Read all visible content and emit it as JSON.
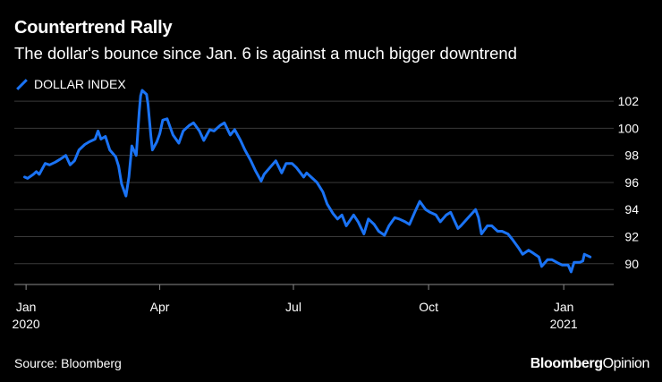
{
  "header": {
    "title": "Countertrend Rally",
    "subtitle": "The dollar's bounce since Jan. 6 is against a much bigger downtrend"
  },
  "footer": {
    "source": "Source: Bloomberg",
    "brand_bold": "Bloomberg",
    "brand_light": "Opinion"
  },
  "colors": {
    "series": "#1a73f5",
    "grid": "#3a3a3a",
    "background": "#000000"
  },
  "chart_data": {
    "type": "line",
    "title": "Countertrend Rally",
    "subtitle": "The dollar's bounce since Jan. 6 is against a much bigger downtrend",
    "xlabel": "",
    "ylabel": "",
    "ylim": [
      88.6,
      102.6
    ],
    "xlim": [
      "2019-12-24",
      "2021-02-04"
    ],
    "yticks": [
      "90",
      "92",
      "94",
      "96",
      "98",
      "100",
      "102"
    ],
    "xticks": [
      {
        "date": "2020-01-01",
        "label1": "Jan",
        "label2": "2020"
      },
      {
        "date": "2020-04-01",
        "label1": "Apr",
        "label2": ""
      },
      {
        "date": "2020-07-01",
        "label1": "Jul",
        "label2": ""
      },
      {
        "date": "2020-10-01",
        "label1": "Oct",
        "label2": ""
      },
      {
        "date": "2021-01-01",
        "label1": "Jan",
        "label2": "2021"
      }
    ],
    "grid": true,
    "legend": "top-left",
    "series": [
      {
        "name": "DOLLAR INDEX",
        "points": [
          [
            "2019-12-31",
            96.4
          ],
          [
            "2020-01-02",
            96.3
          ],
          [
            "2020-01-06",
            96.6
          ],
          [
            "2020-01-08",
            96.8
          ],
          [
            "2020-01-10",
            96.6
          ],
          [
            "2020-01-14",
            97.4
          ],
          [
            "2020-01-17",
            97.3
          ],
          [
            "2020-01-21",
            97.5
          ],
          [
            "2020-01-24",
            97.7
          ],
          [
            "2020-01-28",
            98.0
          ],
          [
            "2020-01-31",
            97.3
          ],
          [
            "2020-02-03",
            97.6
          ],
          [
            "2020-02-06",
            98.4
          ],
          [
            "2020-02-10",
            98.8
          ],
          [
            "2020-02-13",
            99.0
          ],
          [
            "2020-02-17",
            99.2
          ],
          [
            "2020-02-19",
            99.8
          ],
          [
            "2020-02-21",
            99.2
          ],
          [
            "2020-02-24",
            99.4
          ],
          [
            "2020-02-27",
            98.4
          ],
          [
            "2020-03-02",
            97.9
          ],
          [
            "2020-03-04",
            97.2
          ],
          [
            "2020-03-06",
            95.9
          ],
          [
            "2020-03-09",
            95.0
          ],
          [
            "2020-03-11",
            96.4
          ],
          [
            "2020-03-13",
            98.7
          ],
          [
            "2020-03-16",
            98.0
          ],
          [
            "2020-03-18",
            101.2
          ],
          [
            "2020-03-19",
            102.4
          ],
          [
            "2020-03-20",
            102.8
          ],
          [
            "2020-03-23",
            102.5
          ],
          [
            "2020-03-24",
            101.8
          ],
          [
            "2020-03-26",
            99.4
          ],
          [
            "2020-03-27",
            98.4
          ],
          [
            "2020-03-30",
            99.0
          ],
          [
            "2020-04-01",
            99.6
          ],
          [
            "2020-04-03",
            100.6
          ],
          [
            "2020-04-06",
            100.7
          ],
          [
            "2020-04-08",
            100.1
          ],
          [
            "2020-04-10",
            99.5
          ],
          [
            "2020-04-14",
            98.9
          ],
          [
            "2020-04-17",
            99.8
          ],
          [
            "2020-04-21",
            100.2
          ],
          [
            "2020-04-24",
            100.4
          ],
          [
            "2020-04-28",
            99.8
          ],
          [
            "2020-05-01",
            99.1
          ],
          [
            "2020-05-05",
            99.9
          ],
          [
            "2020-05-08",
            99.8
          ],
          [
            "2020-05-12",
            100.2
          ],
          [
            "2020-05-15",
            100.4
          ],
          [
            "2020-05-19",
            99.5
          ],
          [
            "2020-05-22",
            99.9
          ],
          [
            "2020-05-26",
            99.1
          ],
          [
            "2020-05-29",
            98.4
          ],
          [
            "2020-06-02",
            97.6
          ],
          [
            "2020-06-05",
            96.9
          ],
          [
            "2020-06-09",
            96.1
          ],
          [
            "2020-06-11",
            96.6
          ],
          [
            "2020-06-15",
            97.1
          ],
          [
            "2020-06-19",
            97.6
          ],
          [
            "2020-06-23",
            96.7
          ],
          [
            "2020-06-26",
            97.4
          ],
          [
            "2020-06-30",
            97.4
          ],
          [
            "2020-07-03",
            97.1
          ],
          [
            "2020-07-08",
            96.4
          ],
          [
            "2020-07-10",
            96.7
          ],
          [
            "2020-07-14",
            96.3
          ],
          [
            "2020-07-17",
            96.0
          ],
          [
            "2020-07-21",
            95.3
          ],
          [
            "2020-07-24",
            94.4
          ],
          [
            "2020-07-28",
            93.7
          ],
          [
            "2020-07-31",
            93.3
          ],
          [
            "2020-08-03",
            93.6
          ],
          [
            "2020-08-06",
            92.8
          ],
          [
            "2020-08-11",
            93.6
          ],
          [
            "2020-08-14",
            93.1
          ],
          [
            "2020-08-18",
            92.2
          ],
          [
            "2020-08-21",
            93.3
          ],
          [
            "2020-08-25",
            92.9
          ],
          [
            "2020-08-28",
            92.4
          ],
          [
            "2020-09-01",
            92.1
          ],
          [
            "2020-09-04",
            92.8
          ],
          [
            "2020-09-08",
            93.4
          ],
          [
            "2020-09-11",
            93.3
          ],
          [
            "2020-09-15",
            93.1
          ],
          [
            "2020-09-18",
            92.9
          ],
          [
            "2020-09-22",
            93.9
          ],
          [
            "2020-09-25",
            94.6
          ],
          [
            "2020-09-29",
            94.0
          ],
          [
            "2020-10-02",
            93.8
          ],
          [
            "2020-10-06",
            93.6
          ],
          [
            "2020-10-09",
            93.1
          ],
          [
            "2020-10-13",
            93.6
          ],
          [
            "2020-10-16",
            93.8
          ],
          [
            "2020-10-21",
            92.6
          ],
          [
            "2020-10-23",
            92.8
          ],
          [
            "2020-10-28",
            93.4
          ],
          [
            "2020-11-02",
            94.0
          ],
          [
            "2020-11-04",
            93.4
          ],
          [
            "2020-11-06",
            92.2
          ],
          [
            "2020-11-10",
            92.8
          ],
          [
            "2020-11-13",
            92.8
          ],
          [
            "2020-11-17",
            92.4
          ],
          [
            "2020-11-20",
            92.4
          ],
          [
            "2020-11-24",
            92.2
          ],
          [
            "2020-11-27",
            91.8
          ],
          [
            "2020-12-01",
            91.2
          ],
          [
            "2020-12-04",
            90.7
          ],
          [
            "2020-12-08",
            91.0
          ],
          [
            "2020-12-11",
            90.8
          ],
          [
            "2020-12-15",
            90.5
          ],
          [
            "2020-12-17",
            89.8
          ],
          [
            "2020-12-21",
            90.3
          ],
          [
            "2020-12-24",
            90.3
          ],
          [
            "2020-12-29",
            90.0
          ],
          [
            "2020-12-31",
            89.9
          ],
          [
            "2021-01-04",
            89.9
          ],
          [
            "2021-01-06",
            89.4
          ],
          [
            "2021-01-08",
            90.1
          ],
          [
            "2021-01-12",
            90.1
          ],
          [
            "2021-01-14",
            90.2
          ],
          [
            "2021-01-15",
            90.7
          ],
          [
            "2021-01-19",
            90.5
          ]
        ]
      }
    ]
  }
}
